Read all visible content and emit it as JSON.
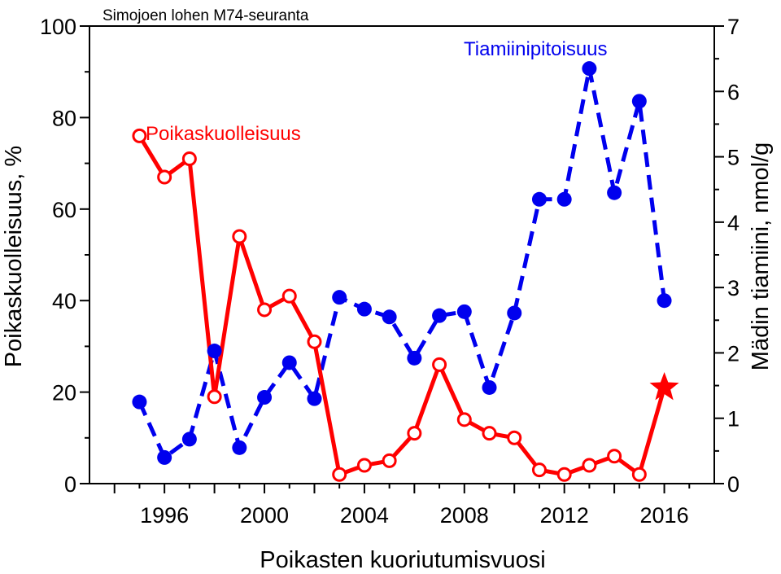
{
  "chart_data": {
    "type": "line",
    "title": "Simojoen lohen M74-seuranta",
    "xlabel": "Poikasten kuoriutumisvuosi",
    "ylabel": "Poikaskuolleisuus, %",
    "y2label": "Mädin tiamiini, nmol/g",
    "xlim": [
      1993,
      2018
    ],
    "ylim": [
      0,
      100
    ],
    "y2lim": [
      0,
      7
    ],
    "x_ticks": [
      "1996",
      "2000",
      "2004",
      "2008",
      "2012",
      "2016"
    ],
    "y_ticks": [
      "0",
      "20",
      "40",
      "60",
      "80",
      "100"
    ],
    "y2_ticks": [
      "0",
      "1",
      "2",
      "3",
      "4",
      "5",
      "6",
      "7"
    ],
    "grid": false,
    "colors": {
      "mortality": "#ff0000",
      "thiamine": "#0000ee"
    },
    "series": [
      {
        "name": "Poikaskuolleisuus",
        "axis": "left",
        "style": "solid-open-circles",
        "x": [
          1995,
          1996,
          1997,
          1998,
          1999,
          2000,
          2001,
          2002,
          2003,
          2004,
          2005,
          2006,
          2007,
          2008,
          2009,
          2010,
          2011,
          2012,
          2013,
          2014,
          2015
        ],
        "values": [
          76,
          67,
          71,
          19,
          54,
          38,
          41,
          31,
          2,
          4,
          5,
          11,
          26,
          14,
          11,
          10,
          3,
          2,
          4,
          6,
          2
        ]
      },
      {
        "name": "Tiamiinipitoisuus",
        "axis": "right",
        "style": "dashed-filled-circles",
        "x": [
          1995,
          1996,
          1997,
          1998,
          1999,
          2000,
          2001,
          2002,
          2003,
          2004,
          2005,
          2006,
          2007,
          2008,
          2009,
          2010,
          2011,
          2012,
          2013,
          2014,
          2015,
          2016
        ],
        "values": [
          1.25,
          0.4,
          0.68,
          2.03,
          0.55,
          1.32,
          1.85,
          1.3,
          2.85,
          2.67,
          2.55,
          1.92,
          2.57,
          2.63,
          1.47,
          2.61,
          4.35,
          4.35,
          6.35,
          4.45,
          5.85,
          2.8
        ]
      }
    ],
    "extra_point": {
      "x": 2016,
      "value": 21,
      "marker": "star",
      "series": "Poikaskuolleisuus"
    }
  }
}
